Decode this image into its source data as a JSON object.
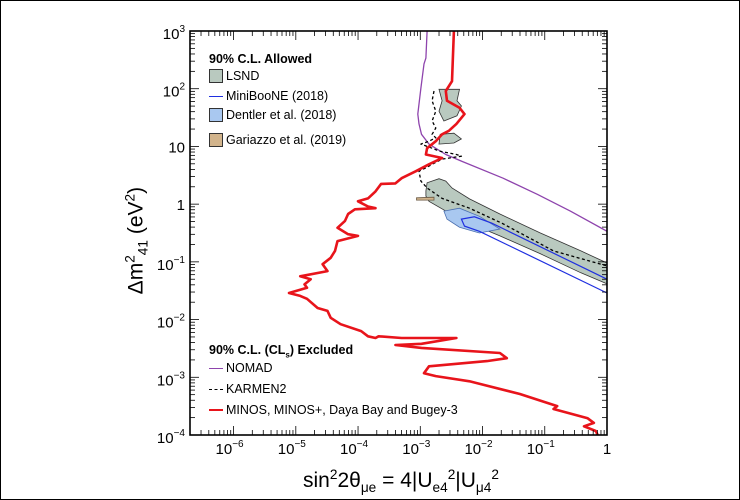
{
  "chart_data": {
    "type": "line",
    "title": "",
    "xlabel": {
      "main": "sin",
      "sup1": "2",
      "mid": "2θ",
      "sub1": "μe",
      "eq": " = 4|U",
      "sub2": "e4",
      "sup2": "2",
      "mid2": "|U",
      "sub3": "μ4",
      "sup3": "2"
    },
    "ylabel": {
      "main": "Δm",
      "sup": "2",
      "sub": "41",
      "unit": " (eV",
      "unit_sup": "2",
      "unit_end": ")"
    },
    "x_scale": "log",
    "y_scale": "log",
    "coordinates_note": "points given as [log10(sin^2 2theta), log10(dm^2 / eV^2)]",
    "xlim_log10": [
      -6.7,
      0
    ],
    "ylim_log10": [
      -4,
      3
    ],
    "x_ticks": [
      {
        "v": -6,
        "base": "10",
        "exp": "−6"
      },
      {
        "v": -5,
        "base": "10",
        "exp": "−5"
      },
      {
        "v": -4,
        "base": "10",
        "exp": "−4"
      },
      {
        "v": -3,
        "base": "10",
        "exp": "−3"
      },
      {
        "v": -2,
        "base": "10",
        "exp": "−2"
      },
      {
        "v": -1,
        "base": "10",
        "exp": "−1"
      },
      {
        "v": 0,
        "base": "1",
        "exp": ""
      }
    ],
    "y_ticks": [
      {
        "v": 3,
        "base": "10",
        "exp": "3"
      },
      {
        "v": 2,
        "base": "10",
        "exp": "2"
      },
      {
        "v": 1,
        "base": "10",
        "exp": ""
      },
      {
        "v": 0,
        "base": "1",
        "exp": ""
      },
      {
        "v": -1,
        "base": "10",
        "exp": "−1"
      },
      {
        "v": -2,
        "base": "10",
        "exp": "−2"
      },
      {
        "v": -3,
        "base": "10",
        "exp": "−3"
      },
      {
        "v": -4,
        "base": "10",
        "exp": "−4"
      }
    ],
    "legend": {
      "allowed_title": "90% C.L. Allowed",
      "excluded_title_pre": "90% C.L. (CL",
      "excluded_title_sub": "s",
      "excluded_title_post": ") Excluded",
      "placement": "top-left / bottom-left"
    },
    "regions": [
      {
        "name": "LSND",
        "color": "#b9c9bf",
        "edge": "#333333",
        "polygons": [
          [
            [
              -2.91,
              0.23
            ],
            [
              -2.89,
              0.37
            ],
            [
              -2.7,
              0.44
            ],
            [
              -2.59,
              0.4
            ],
            [
              -2.49,
              0.28
            ],
            [
              -2.21,
              0.09
            ],
            [
              -1.72,
              -0.17
            ],
            [
              -1.07,
              -0.5
            ],
            [
              -0.42,
              -0.81
            ],
            [
              0,
              -1.02
            ],
            [
              0,
              -1.38
            ],
            [
              -0.42,
              -1.19
            ],
            [
              -1.07,
              -0.86
            ],
            [
              -1.72,
              -0.55
            ],
            [
              -2.21,
              -0.33
            ],
            [
              -2.54,
              -0.15
            ],
            [
              -2.86,
              0.05
            ],
            [
              -2.91,
              0.14
            ]
          ],
          [
            [
              -2.7,
              1.99
            ],
            [
              -2.37,
              1.99
            ],
            [
              -2.41,
              1.79
            ],
            [
              -2.34,
              1.7
            ],
            [
              -2.41,
              1.53
            ],
            [
              -2.62,
              1.44
            ],
            [
              -2.7,
              1.61
            ],
            [
              -2.65,
              1.79
            ]
          ],
          [
            [
              -2.68,
              1.21
            ],
            [
              -2.46,
              1.23
            ],
            [
              -2.34,
              1.13
            ],
            [
              -2.46,
              1.06
            ],
            [
              -2.7,
              1.04
            ]
          ]
        ]
      },
      {
        "name": "Dentler et al. (2018)",
        "color": "#a9c8f0",
        "edge": "#4a6fb0",
        "polygons": [
          [
            [
              -2.62,
              -0.12
            ],
            [
              -2.37,
              -0.07
            ],
            [
              -2.05,
              -0.21
            ],
            [
              -1.72,
              -0.43
            ],
            [
              -2.05,
              -0.5
            ],
            [
              -2.37,
              -0.4
            ],
            [
              -2.57,
              -0.26
            ]
          ]
        ]
      },
      {
        "name": "Gariazzo et al. (2019)",
        "color": "#d2b48c",
        "edge": "#6b5a45",
        "polygons": [
          [
            [
              -3.06,
              0.11
            ],
            [
              -2.78,
              0.12
            ],
            [
              -2.78,
              0.07
            ],
            [
              -3.06,
              0.07
            ]
          ]
        ]
      }
    ],
    "contours": [
      {
        "name": "MiniBooNE (2018)",
        "color": "#1f2fe0",
        "closed": true,
        "points": [
          [
            -2.34,
            -0.26
          ],
          [
            -2.13,
            -0.22
          ],
          [
            -1.85,
            -0.33
          ],
          [
            0,
            -1.3
          ],
          [
            0,
            -1.54
          ],
          [
            -2.05,
            -0.47
          ],
          [
            -2.29,
            -0.38
          ]
        ]
      }
    ],
    "series": [
      {
        "name": "NOMAD",
        "color": "#8e44ad",
        "style": "solid",
        "width": 1.3,
        "points": [
          [
            -2.89,
            3
          ],
          [
            -2.91,
            2.53
          ],
          [
            -2.94,
            2.43
          ],
          [
            -2.99,
            2.01
          ],
          [
            -3.04,
            1.56
          ],
          [
            -3.02,
            1.39
          ],
          [
            -2.98,
            1.21
          ],
          [
            -2.86,
            1.04
          ],
          [
            -2.59,
            0.86
          ],
          [
            -2.33,
            0.74
          ],
          [
            -1.67,
            0.45
          ],
          [
            -1.12,
            0.17
          ],
          [
            -0.59,
            -0.12
          ],
          [
            0,
            -0.47
          ]
        ]
      },
      {
        "name": "KARMEN2",
        "color": "#000000",
        "style": "dashed",
        "width": 1.3,
        "points": [
          [
            -2.78,
            1.96
          ],
          [
            -2.81,
            1.79
          ],
          [
            -2.75,
            1.61
          ],
          [
            -2.81,
            1.44
          ],
          [
            -2.75,
            1.32
          ],
          [
            -2.81,
            1.21
          ],
          [
            -2.75,
            1.15
          ],
          [
            -2.86,
            1.09
          ],
          [
            -2.99,
            1.04
          ],
          [
            -2.81,
            0.97
          ],
          [
            -2.7,
            0.92
          ],
          [
            -2.42,
            0.86
          ],
          [
            -2.34,
            0.83
          ],
          [
            -2.65,
            0.78
          ],
          [
            -2.81,
            0.69
          ],
          [
            -2.91,
            0.63
          ],
          [
            -3.02,
            0.57
          ],
          [
            -2.99,
            0.4
          ],
          [
            -2.89,
            0.28
          ],
          [
            -2.65,
            0.1
          ],
          [
            -2.21,
            -0.07
          ],
          [
            -1.67,
            -0.34
          ],
          [
            -0.86,
            -0.81
          ],
          [
            0,
            -1.07
          ]
        ]
      },
      {
        "name": "MINOS, MINOS+, Daya Bay and Bugey-3",
        "color": "#e8141b",
        "style": "solid",
        "width": 2.6,
        "points": [
          [
            -2.46,
            3
          ],
          [
            -2.49,
            2.13
          ],
          [
            -2.59,
            1.96
          ],
          [
            -2.57,
            1.79
          ],
          [
            -2.37,
            1.67
          ],
          [
            -2.29,
            1.56
          ],
          [
            -2.42,
            1.39
          ],
          [
            -2.54,
            1.27
          ],
          [
            -2.65,
            1.21
          ],
          [
            -2.75,
            1.09
          ],
          [
            -2.89,
            0.97
          ],
          [
            -2.91,
            0.86
          ],
          [
            -2.65,
            0.8
          ],
          [
            -2.86,
            0.69
          ],
          [
            -3.07,
            0.57
          ],
          [
            -3.3,
            0.45
          ],
          [
            -3.4,
            0.36
          ],
          [
            -3.63,
            0.35
          ],
          [
            -3.72,
            0.22
          ],
          [
            -3.84,
            0.1
          ],
          [
            -4.0,
            0.05
          ],
          [
            -3.84,
            -0.04
          ],
          [
            -3.72,
            -0.07
          ],
          [
            -4.05,
            -0.09
          ],
          [
            -4.16,
            -0.17
          ],
          [
            -4.21,
            -0.29
          ],
          [
            -4.33,
            -0.41
          ],
          [
            -4.16,
            -0.52
          ],
          [
            -4.0,
            -0.55
          ],
          [
            -4.33,
            -0.64
          ],
          [
            -4.37,
            -0.81
          ],
          [
            -4.44,
            -0.93
          ],
          [
            -4.57,
            -1.04
          ],
          [
            -4.49,
            -1.16
          ],
          [
            -4.93,
            -1.25
          ],
          [
            -4.76,
            -1.3
          ],
          [
            -4.86,
            -1.39
          ],
          [
            -4.82,
            -1.45
          ],
          [
            -5.11,
            -1.54
          ],
          [
            -4.93,
            -1.59
          ],
          [
            -4.82,
            -1.64
          ],
          [
            -4.65,
            -1.8
          ],
          [
            -4.49,
            -1.85
          ],
          [
            -4.44,
            -1.97
          ],
          [
            -4.28,
            -2.08
          ],
          [
            -3.95,
            -2.2
          ],
          [
            -3.84,
            -2.29
          ],
          [
            -3.72,
            -2.32
          ],
          [
            -3.67,
            -2.29
          ],
          [
            -3.3,
            -2.32
          ],
          [
            -2.42,
            -2.32
          ],
          [
            -2.98,
            -2.42
          ],
          [
            -3.4,
            -2.44
          ],
          [
            -2.98,
            -2.49
          ],
          [
            -1.72,
            -2.58
          ],
          [
            -1.61,
            -2.67
          ],
          [
            -1.93,
            -2.72
          ],
          [
            -2.86,
            -2.81
          ],
          [
            -2.94,
            -2.93
          ],
          [
            -2.75,
            -2.98
          ],
          [
            -2.21,
            -3.07
          ],
          [
            -1.4,
            -3.29
          ],
          [
            -0.8,
            -3.5
          ],
          [
            -0.86,
            -3.55
          ],
          [
            -0.31,
            -3.71
          ],
          [
            -0.21,
            -3.79
          ],
          [
            -0.37,
            -3.85
          ],
          [
            -0.18,
            -3.93
          ],
          [
            -0.15,
            -4
          ]
        ]
      }
    ],
    "legend_labels": {
      "lsnd": "LSND",
      "miniboone": "MiniBooNE (2018)",
      "dentler": "Dentler et al. (2018)",
      "gariazzo": "Gariazzo et al. (2019)",
      "nomad": "NOMAD",
      "karmen": "KARMEN2",
      "minos": "MINOS, MINOS+, Daya Bay and Bugey-3"
    }
  }
}
